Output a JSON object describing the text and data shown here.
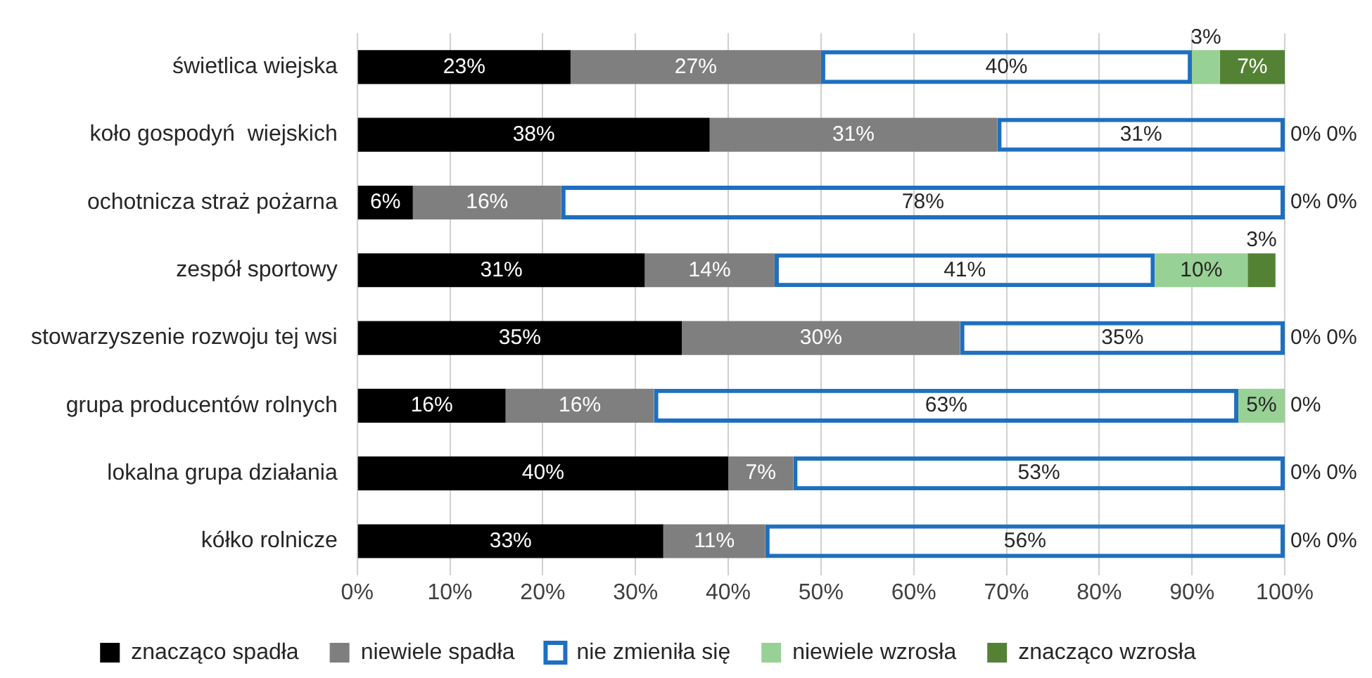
{
  "chart_data": {
    "type": "bar",
    "orientation": "horizontal",
    "stacked": true,
    "grid": "x",
    "legend": "bottom",
    "categories": [
      "świetlica wiejska",
      "koło gospodyń  wiejskich",
      "ochotnicza straż pożarna",
      "zespół sportowy",
      "stowarzyszenie rozwoju tej wsi",
      "grupa producentów rolnych",
      "lokalna grupa działania",
      "kółko rolnicze"
    ],
    "xlim": [
      0,
      100
    ],
    "xticks": [
      {
        "value": 0,
        "label": "0%"
      },
      {
        "value": 10,
        "label": "10%"
      },
      {
        "value": 20,
        "label": "20%"
      },
      {
        "value": 30,
        "label": "30%"
      },
      {
        "value": 40,
        "label": "40%"
      },
      {
        "value": 50,
        "label": "50%"
      },
      {
        "value": 60,
        "label": "60%"
      },
      {
        "value": 70,
        "label": "70%"
      },
      {
        "value": 80,
        "label": "80%"
      },
      {
        "value": 90,
        "label": "90%"
      },
      {
        "value": 100,
        "label": "100%"
      }
    ],
    "series": [
      {
        "name": "znacząco spadła",
        "color": "#000000",
        "values": [
          23,
          38,
          6,
          31,
          35,
          16,
          40,
          33
        ],
        "value_labels": [
          "23%",
          "38%",
          "6%",
          "31%",
          "35%",
          "16%",
          "40%",
          "33%"
        ]
      },
      {
        "name": "niewiele spadła",
        "color": "#7f7f7f",
        "values": [
          27,
          31,
          16,
          14,
          30,
          16,
          7,
          11
        ],
        "value_labels": [
          "27%",
          "31%",
          "16%",
          "14%",
          "30%",
          "16%",
          "7%",
          "11%"
        ]
      },
      {
        "name": "nie zmieniła się",
        "color": "#1f6fbf",
        "values": [
          40,
          31,
          78,
          41,
          35,
          63,
          53,
          56
        ],
        "value_labels": [
          "40%",
          "31%",
          "78%",
          "41%",
          "35%",
          "63%",
          "53%",
          "56%"
        ]
      },
      {
        "name": "niewiele wzrosła",
        "color": "#98d195",
        "values": [
          3,
          0,
          0,
          10,
          0,
          5,
          0,
          0
        ],
        "value_labels": [
          "3%",
          "0%",
          "0%",
          "10%",
          "0%",
          "5%",
          "0%",
          "0%"
        ]
      },
      {
        "name": "znacząco wzrosła",
        "color": "#548235",
        "values": [
          7,
          0,
          0,
          3,
          0,
          0,
          0,
          0
        ],
        "value_labels": [
          "7%",
          "0%",
          "0%",
          "3%",
          "0%",
          "0%",
          "0%",
          "0%"
        ]
      }
    ]
  }
}
